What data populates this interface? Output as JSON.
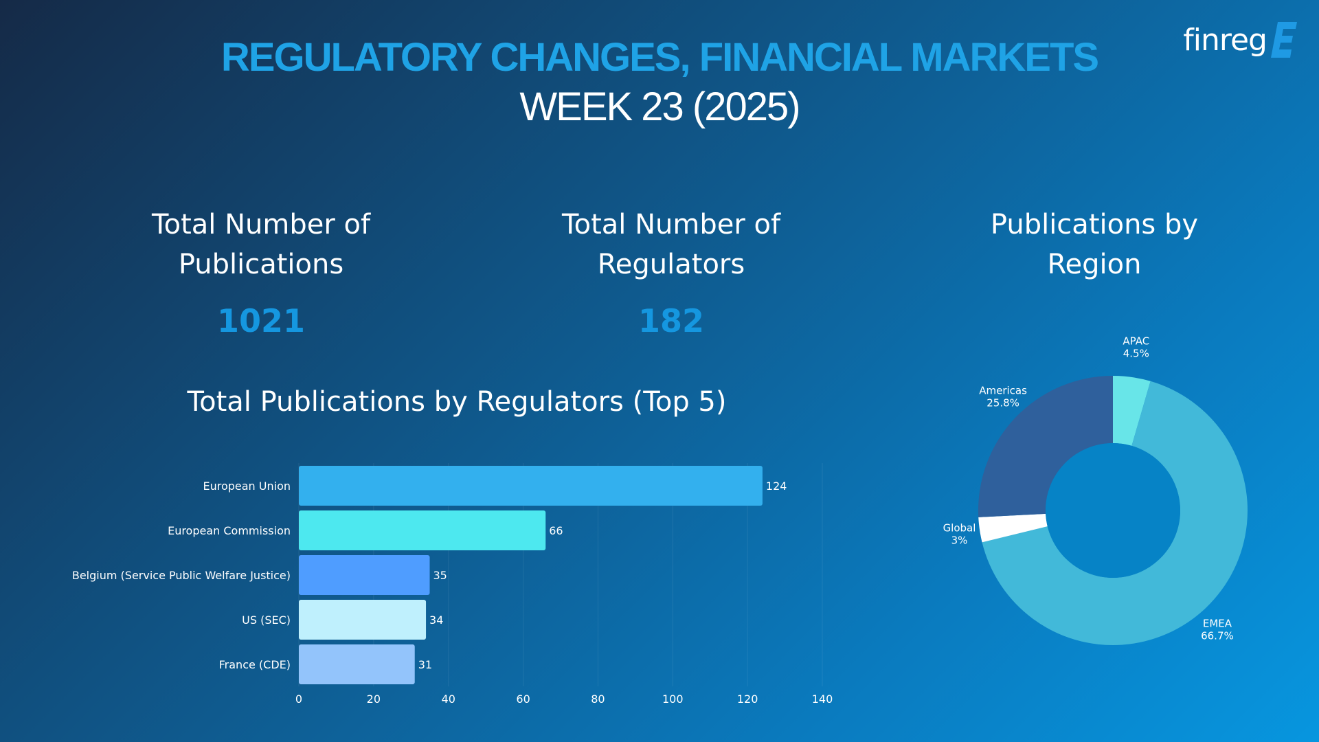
{
  "header": {
    "title": "REGULATORY CHANGES, FINANCIAL MARKETS",
    "subtitle": "WEEK 23 (2025)"
  },
  "logo": {
    "text": "finreg",
    "mark_icon": "finreg-e-mark"
  },
  "kpis": {
    "publications": {
      "label_line1": "Total Number of",
      "label_line2": "Publications",
      "value": "1021"
    },
    "regulators": {
      "label_line1": "Total Number of",
      "label_line2": "Regulators",
      "value": "182"
    },
    "region": {
      "label_line1": "Publications by",
      "label_line2": "Region"
    }
  },
  "chart_data": [
    {
      "type": "bar",
      "orientation": "horizontal",
      "title": "Total Publications by Regulators (Top 5)",
      "categories": [
        "European Union",
        "European Commission",
        "Belgium (Service Public Welfare Justice)",
        "US (SEC)",
        "France (CDE)"
      ],
      "values": [
        124,
        66,
        35,
        34,
        31
      ],
      "value_labels": [
        "124",
        "66",
        "35",
        "34",
        "31"
      ],
      "colors": [
        "#33b0ee",
        "#4de8ef",
        "#4f9dff",
        "#bff0fd",
        "#93c4fb"
      ],
      "xlim": [
        0,
        140
      ],
      "xticks": [
        0,
        20,
        40,
        60,
        80,
        100,
        120,
        140
      ],
      "grid": true
    },
    {
      "type": "pie",
      "variant": "donut",
      "title": "Publications by Region",
      "labels": [
        "APAC",
        "EMEA",
        "Global",
        "Americas"
      ],
      "values": [
        4.5,
        66.7,
        3,
        25.8
      ],
      "value_labels": [
        "4.5%",
        "66.7%",
        "3%",
        "25.8%"
      ],
      "colors": [
        "#68e5e8",
        "#42b9d9",
        "#ffffff",
        "#2f609c"
      ],
      "hole_color": "#0683c6"
    }
  ]
}
